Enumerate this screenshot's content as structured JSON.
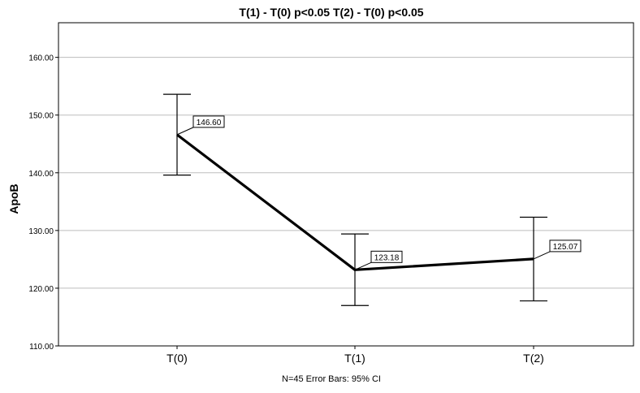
{
  "chart_data": {
    "type": "line",
    "title": "T(1) - T(0) p<0.05   T(2) - T(0) p<0.05",
    "xlabel": "",
    "ylabel": "ApoB",
    "categories": [
      "T(0)",
      "T(1)",
      "T(2)"
    ],
    "series": [
      {
        "values": [
          146.6,
          123.18,
          125.07
        ],
        "error_low": [
          139.6,
          117.0,
          117.8
        ],
        "error_high": [
          153.6,
          129.4,
          132.3
        ],
        "data_labels": [
          "146.60",
          "123.18",
          "125.07"
        ]
      }
    ],
    "ylim": [
      110,
      166
    ],
    "yticks": [
      110,
      120,
      130,
      140,
      150,
      160
    ],
    "ytick_labels": [
      "110.00",
      "120.00",
      "130.00",
      "140.00",
      "150.00",
      "160.00"
    ],
    "grid": true,
    "footnote": "N=45     Error Bars: 95% CI",
    "colors": {
      "line": "#000000",
      "grid": "#bdbdbd",
      "axis": "#000000"
    }
  }
}
